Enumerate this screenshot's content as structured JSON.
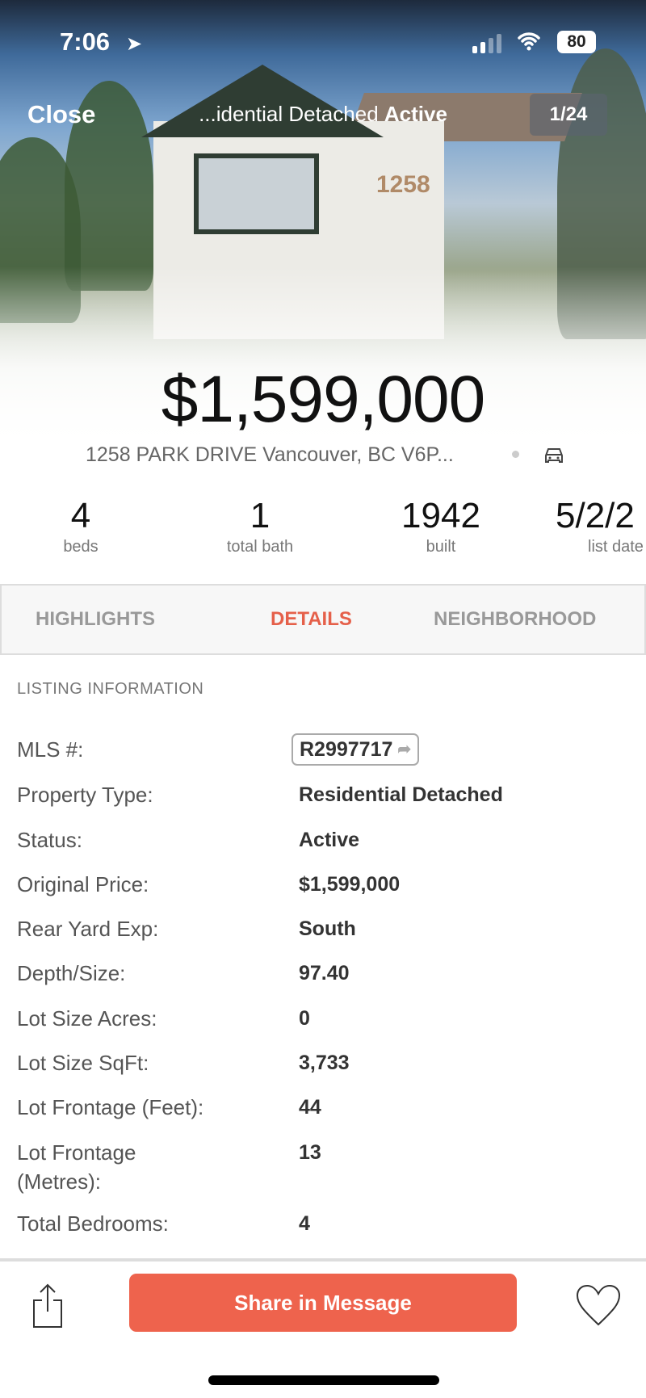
{
  "status_bar": {
    "time": "7:06",
    "battery": "80"
  },
  "nav": {
    "close": "Close",
    "title_prefix": "...idential Detached",
    "title_status": "Active",
    "photo_counter": "1/24",
    "house_number": "1258"
  },
  "listing": {
    "price": "$1,599,000",
    "address": "1258 PARK DRIVE Vancouver, BC V6P..."
  },
  "stats": [
    {
      "value": "4",
      "label": "beds"
    },
    {
      "value": "1",
      "label": "total bath"
    },
    {
      "value": "1942",
      "label": "built"
    },
    {
      "value": "5/2/2",
      "label": "list date"
    }
  ],
  "tabs": [
    {
      "label": "HIGHLIGHTS"
    },
    {
      "label": "DETAILS",
      "active": true
    },
    {
      "label": "NEIGHBORHOOD"
    }
  ],
  "section_title": "LISTING INFORMATION",
  "details": [
    {
      "key": "MLS #:",
      "value": "R2997717"
    },
    {
      "key": "Property Type:",
      "value": "Residential Detached"
    },
    {
      "key": "Status:",
      "value": "Active"
    },
    {
      "key": "Original Price:",
      "value": "$1,599,000"
    },
    {
      "key": "Rear Yard Exp:",
      "value": "South"
    },
    {
      "key": "Depth/Size:",
      "value": "97.40"
    },
    {
      "key": "Lot Size Acres:",
      "value": "0"
    },
    {
      "key": "Lot Size SqFt:",
      "value": "3,733"
    },
    {
      "key": "Lot Frontage (Feet):",
      "value": "44"
    },
    {
      "key": "Lot Frontage (Metres):",
      "value": "13"
    },
    {
      "key": "Total Bedrooms:",
      "value": "4"
    }
  ],
  "bottom": {
    "cta": "Share in Message"
  },
  "colors": {
    "accent": "#ee634d",
    "tab_active": "#e5604a"
  }
}
